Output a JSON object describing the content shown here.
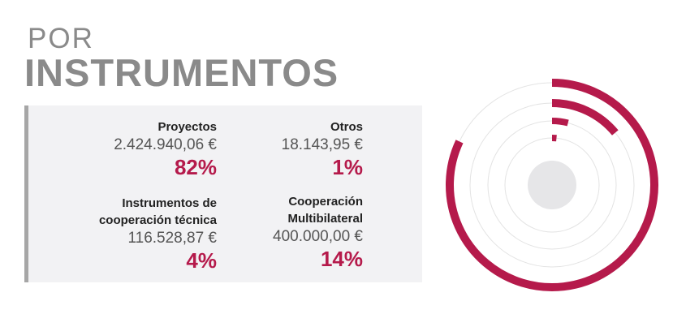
{
  "title": {
    "line1": "POR",
    "line2": "INSTRUMENTOS"
  },
  "colors": {
    "accent": "#b51a4b",
    "ring": "#e3e3e3",
    "center": "#e6e6e8",
    "panel": "#f2f2f4"
  },
  "items": [
    {
      "name": "Proyectos",
      "amount": "2.424.940,06 €",
      "pct": "82%"
    },
    {
      "name": "Otros",
      "amount": "18.143,95 €",
      "pct": "1%"
    },
    {
      "name_line1": "Instrumentos de",
      "name_line2": "cooperación técnica",
      "amount": "116.528,87 €",
      "pct": "4%"
    },
    {
      "name_line1": "Cooperación",
      "name_line2": "Multibilateral",
      "amount": "400.000,00 €",
      "pct": "14%"
    }
  ],
  "chart_data": {
    "type": "radial-bar",
    "categories": [
      "Proyectos",
      "Cooperación Multibilateral",
      "Instrumentos de cooperación técnica",
      "Otros"
    ],
    "values": [
      82,
      14,
      4,
      1
    ],
    "unit": "%"
  }
}
